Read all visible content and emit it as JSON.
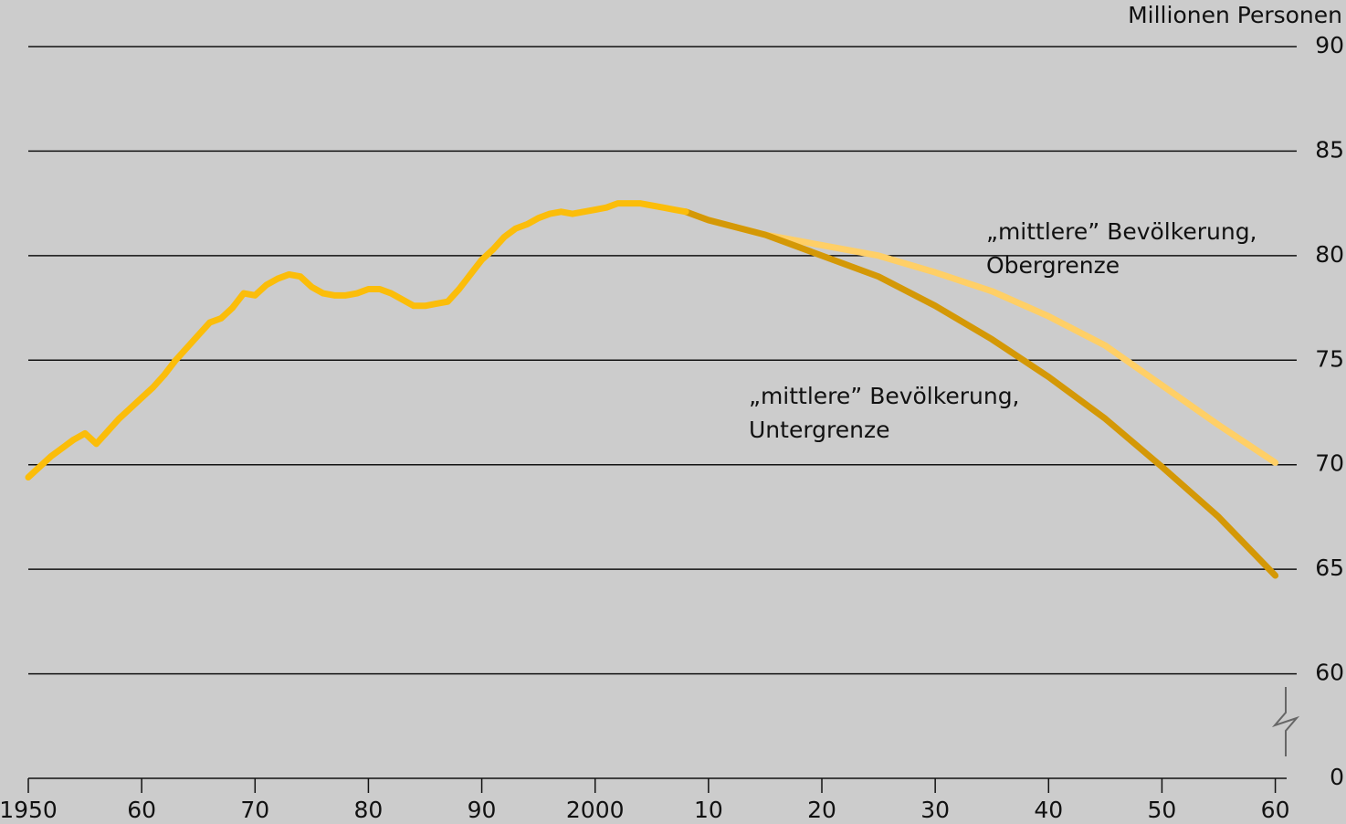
{
  "chart_data": {
    "type": "line",
    "y_label": "Millionen Personen",
    "xlim": [
      1950,
      2061
    ],
    "xticks": [
      1950,
      {
        "value": 1960,
        "label": "60"
      },
      {
        "value": 1970,
        "label": "70"
      },
      {
        "value": 1980,
        "label": "80"
      },
      {
        "value": 1990,
        "label": "90"
      },
      2000,
      {
        "value": 2010,
        "label": "10"
      },
      {
        "value": 2020,
        "label": "20"
      },
      {
        "value": 2030,
        "label": "30"
      },
      {
        "value": 2040,
        "label": "40"
      },
      {
        "value": 2050,
        "label": "50"
      },
      {
        "value": 2060,
        "label": "60"
      }
    ],
    "ylim": [
      0,
      90
    ],
    "y_break": [
      0,
      55
    ],
    "yticks": [
      0,
      60,
      65,
      70,
      75,
      80,
      85,
      90
    ],
    "grid": true,
    "series": [
      {
        "color": "#ffcf66",
        "label": [
          "„mittlere” Bevölkerung,",
          "Obergrenze"
        ],
        "x": [
          2008,
          2010,
          2015,
          2020,
          2025,
          2030,
          2035,
          2040,
          2045,
          2050,
          2055,
          2060
        ],
        "values": [
          82.1,
          81.7,
          81.0,
          80.5,
          80.0,
          79.2,
          78.3,
          77.1,
          75.7,
          73.8,
          71.9,
          70.1
        ]
      },
      {
        "color": "#d49806",
        "label": [
          "„mittlere” Bevölkerung,",
          "Untergrenze"
        ],
        "x": [
          2008,
          2010,
          2015,
          2020,
          2025,
          2030,
          2035,
          2040,
          2045,
          2050,
          2055,
          2060
        ],
        "values": [
          82.1,
          81.7,
          81.0,
          80.0,
          79.0,
          77.6,
          76.0,
          74.2,
          72.2,
          69.9,
          67.5,
          64.7
        ]
      },
      {
        "color": "#fbbd0a",
        "x": [
          1950,
          1951,
          1952,
          1953,
          1954,
          1955,
          1956,
          1957,
          1958,
          1959,
          1960,
          1961,
          1962,
          1963,
          1964,
          1965,
          1966,
          1967,
          1968,
          1969,
          1970,
          1971,
          1972,
          1973,
          1974,
          1975,
          1976,
          1977,
          1978,
          1979,
          1980,
          1981,
          1982,
          1983,
          1984,
          1985,
          1986,
          1987,
          1988,
          1989,
          1990,
          1991,
          1992,
          1993,
          1994,
          1995,
          1996,
          1997,
          1998,
          1999,
          2000,
          2001,
          2002,
          2003,
          2004,
          2005,
          2006,
          2007,
          2008
        ],
        "values": [
          69.4,
          69.9,
          70.4,
          70.8,
          71.2,
          71.5,
          71.0,
          71.6,
          72.2,
          72.7,
          73.2,
          73.7,
          74.3,
          75.0,
          75.6,
          76.2,
          76.8,
          77.0,
          77.5,
          78.2,
          78.1,
          78.6,
          78.9,
          79.1,
          79.0,
          78.5,
          78.2,
          78.1,
          78.1,
          78.2,
          78.4,
          78.4,
          78.2,
          77.9,
          77.6,
          77.6,
          77.7,
          77.8,
          78.4,
          79.1,
          79.8,
          80.3,
          80.9,
          81.3,
          81.5,
          81.8,
          82.0,
          82.1,
          82.0,
          82.1,
          82.2,
          82.3,
          82.5,
          82.5,
          82.5,
          82.4,
          82.3,
          82.2,
          82.1
        ]
      }
    ]
  }
}
